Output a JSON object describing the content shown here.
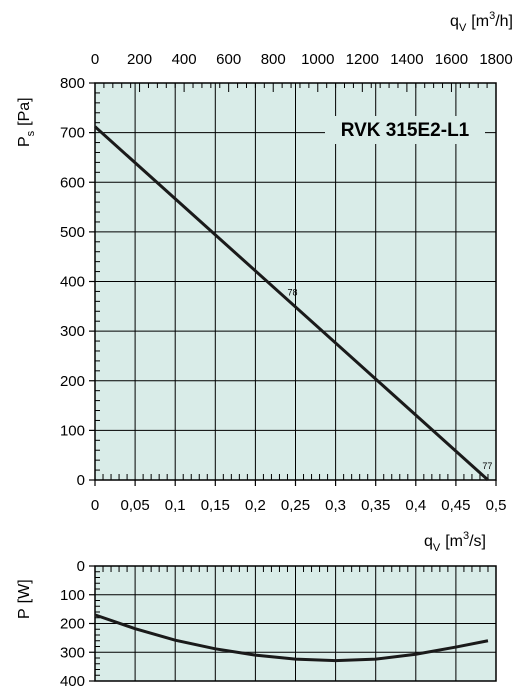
{
  "chart_data": [
    {
      "type": "line",
      "title": "RVK 315E2-L1",
      "x": [
        0,
        0.49
      ],
      "series": [
        {
          "values": [
            712,
            0
          ]
        }
      ],
      "xlim": [
        0,
        0.5
      ],
      "ylim": [
        0,
        800
      ],
      "x_ticks": [
        "0",
        "0,05",
        "0,1",
        "0,15",
        "0,2",
        "0,25",
        "0,3",
        "0,35",
        "0,4",
        "0,45",
        "0,5"
      ],
      "y_ticks": [
        "0",
        "100",
        "200",
        "300",
        "400",
        "500",
        "600",
        "700",
        "800"
      ],
      "top_ticks": [
        "0",
        "200",
        "400",
        "600",
        "800",
        "1000",
        "1200",
        "1400",
        "1600",
        "1800"
      ],
      "ylabel": {
        "main": "P",
        "sub": "s",
        "unit": "[Pa]"
      },
      "top_axis_label": {
        "main": "q",
        "sub": "V",
        "unit_pre": "[m",
        "sup": "3",
        "unit_post": "/h]"
      },
      "x_axis_label": {
        "main": "q",
        "sub": "V",
        "unit_pre": "[m",
        "sup": "3",
        "unit_post": "/s]"
      },
      "annotations": [
        {
          "text": "78",
          "x": 0.24,
          "y": 372
        },
        {
          "text": "77",
          "x": 0.483,
          "y": 22
        }
      ],
      "grid": true,
      "background": "#d9ece8"
    },
    {
      "type": "line",
      "x": [
        0,
        0.05,
        0.1,
        0.15,
        0.2,
        0.25,
        0.3,
        0.35,
        0.4,
        0.45,
        0.49
      ],
      "series": [
        {
          "values": [
            170,
            218,
            258,
            288,
            310,
            324,
            329,
            324,
            307,
            282,
            260
          ]
        }
      ],
      "xlim": [
        0,
        0.5
      ],
      "ylim": [
        0,
        400
      ],
      "y_inverted": true,
      "y_ticks": [
        "0",
        "100",
        "200",
        "300",
        "400"
      ],
      "ylabel": {
        "main": "P",
        "unit": "[W]"
      },
      "grid": true,
      "background": "#d9ece8"
    }
  ]
}
